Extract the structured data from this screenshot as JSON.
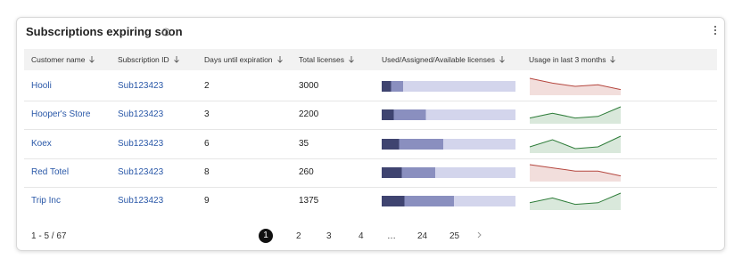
{
  "header": {
    "title": "Subscriptions expiring soon"
  },
  "table": {
    "columns": [
      "Customer name",
      "Subscription ID",
      "Days until expiration",
      "Total licenses",
      "Used/Assigned/Available licenses",
      "Usage in last 3 months"
    ],
    "license_colors": [
      "#3f4470",
      "#8a8fbf",
      "#d3d5ec"
    ],
    "rows": [
      {
        "customer": "Hooli",
        "subscription": "Sub123423",
        "days": 2,
        "total": 3000,
        "licenses": [
          7,
          9,
          84
        ],
        "usage": [
          10,
          7,
          5,
          6,
          3
        ],
        "usage_color": "#b5473f"
      },
      {
        "customer": "Hooper's Store",
        "subscription": "Sub123423",
        "days": 3,
        "total": 2200,
        "licenses": [
          9,
          24,
          67
        ],
        "usage": [
          3,
          6,
          3,
          4,
          10
        ],
        "usage_color": "#2f7d3a"
      },
      {
        "customer": "Koex",
        "subscription": "Sub123423",
        "days": 6,
        "total": 35,
        "licenses": [
          13,
          33,
          54
        ],
        "usage": [
          3,
          7,
          2,
          3,
          9
        ],
        "usage_color": "#2f7d3a"
      },
      {
        "customer": "Red Totel",
        "subscription": "Sub123423",
        "days": 8,
        "total": 260,
        "licenses": [
          15,
          25,
          60
        ],
        "usage": [
          10,
          8,
          6,
          6,
          3
        ],
        "usage_color": "#b5473f"
      },
      {
        "customer": "Trip Inc",
        "subscription": "Sub123423",
        "days": 9,
        "total": 1375,
        "licenses": [
          17,
          37,
          46
        ],
        "usage": [
          4,
          7,
          3,
          4,
          10
        ],
        "usage_color": "#2f7d3a"
      }
    ]
  },
  "pagination": {
    "range": "1 - 5 / 67",
    "pages": [
      1,
      2,
      3,
      4,
      "…",
      24,
      25
    ],
    "current": 1
  }
}
